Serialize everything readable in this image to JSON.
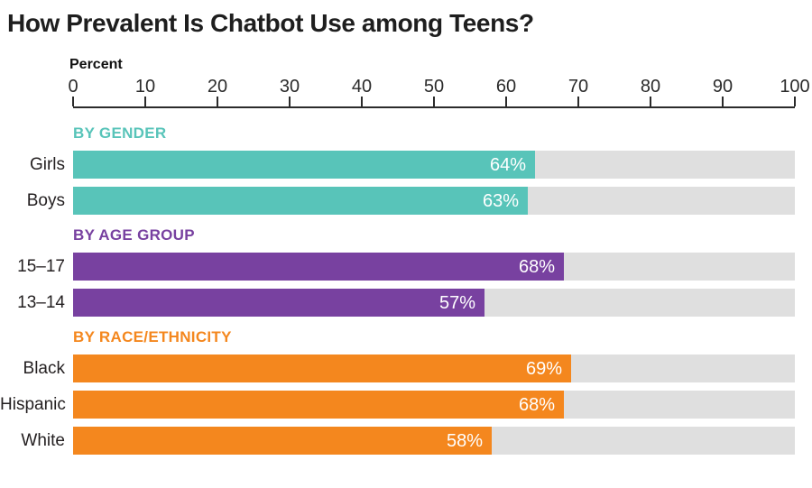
{
  "title": "How Prevalent Is Chatbot Use among Teens?",
  "axis": {
    "label": "Percent",
    "ticks": [
      "0",
      "10",
      "20",
      "30",
      "40",
      "50",
      "60",
      "70",
      "80",
      "90",
      "100"
    ],
    "min": 0,
    "max": 100
  },
  "colors": {
    "track": "#dfdfdf",
    "axis_line": "#2b2b2b",
    "title_text": "#1e1e1e",
    "label_text": "#231f20",
    "value_text": "#ffffff",
    "gender_accent": "#58c4b9",
    "age_accent": "#7841a0",
    "race_accent": "#f4871e"
  },
  "chart_data": {
    "type": "bar",
    "orientation": "horizontal",
    "title": "How Prevalent Is Chatbot Use among Teens?",
    "xlabel": "Percent",
    "ylabel": "",
    "xlim": [
      0,
      100
    ],
    "x_ticks": [
      0,
      10,
      20,
      30,
      40,
      50,
      60,
      70,
      80,
      90,
      100
    ],
    "grid": false,
    "legend": false,
    "groups": [
      {
        "label": "BY GENDER",
        "color": "#58c4b9",
        "bars": [
          {
            "label": "Girls",
            "value": 64,
            "display": "64%"
          },
          {
            "label": "Boys",
            "value": 63,
            "display": "63%"
          }
        ]
      },
      {
        "label": "BY AGE GROUP",
        "color": "#7841a0",
        "bars": [
          {
            "label": "15–17",
            "value": 68,
            "display": "68%"
          },
          {
            "label": "13–14",
            "value": 57,
            "display": "57%"
          }
        ]
      },
      {
        "label": "BY RACE/ETHNICITY",
        "color": "#f4871e",
        "bars": [
          {
            "label": "Black",
            "value": 69,
            "display": "69%"
          },
          {
            "label": "Hispanic",
            "value": 68,
            "display": "68%"
          },
          {
            "label": "White",
            "value": 58,
            "display": "58%"
          }
        ]
      }
    ]
  }
}
